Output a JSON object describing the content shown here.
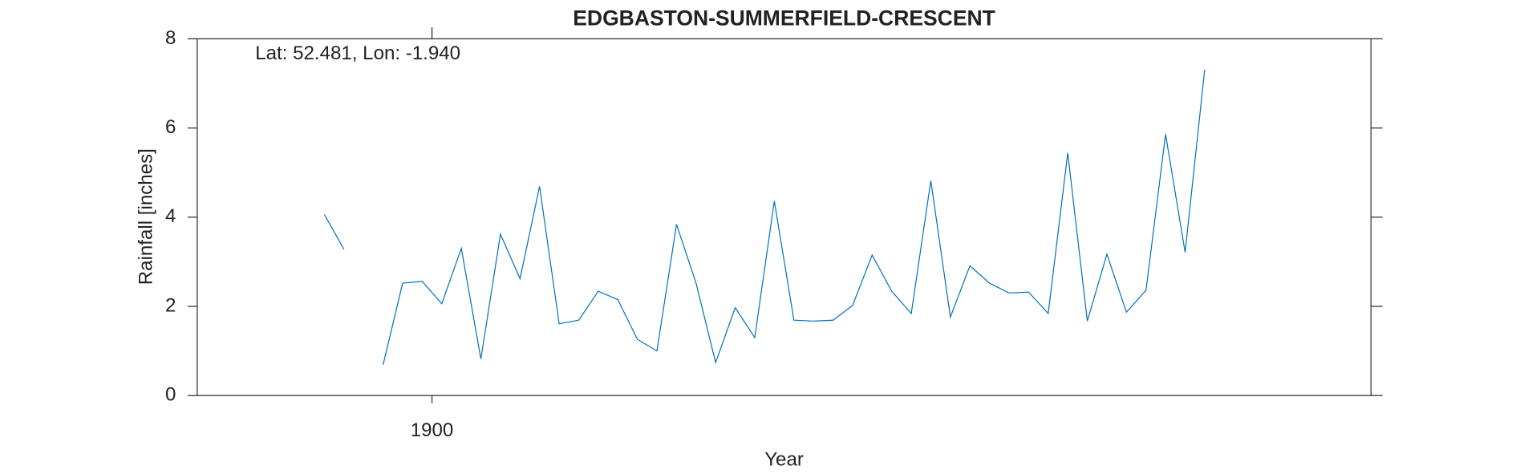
{
  "chart_data": {
    "type": "line",
    "title": "EDGBASTON-SUMMERFIELD-CRESCENT",
    "annotation": "Lat: 52.481, Lon: -1.940",
    "xlabel": "Year",
    "ylabel": "Rainfall [inches]",
    "x": [
      1894.5,
      1895.5,
      1896.5,
      1897.5,
      1898.5,
      1899.5,
      1900.5,
      1901.5,
      1902.5,
      1903.5,
      1904.5,
      1905.5,
      1906.5,
      1907.5,
      1908.5,
      1909.5,
      1910.5,
      1911.5,
      1912.5,
      1913.5,
      1914.5,
      1915.5,
      1916.5,
      1917.5,
      1918.5,
      1919.5,
      1920.5,
      1921.5,
      1922.5,
      1923.5,
      1924.5,
      1925.5,
      1926.5,
      1927.5,
      1928.5,
      1929.5,
      1930.5,
      1931.5,
      1932.5,
      1933.5,
      1934.5,
      1935.5,
      1936.5,
      1937.5,
      1938.5,
      1939.5
    ],
    "values": [
      4.06,
      3.28,
      null,
      0.69,
      2.52,
      2.56,
      2.06,
      3.3,
      0.82,
      3.62,
      2.62,
      4.69,
      1.61,
      1.69,
      2.34,
      2.15,
      1.26,
      1.0,
      3.84,
      2.52,
      0.74,
      1.97,
      1.3,
      4.36,
      1.69,
      1.67,
      1.69,
      2.02,
      3.15,
      2.34,
      1.84,
      4.82,
      1.76,
      2.91,
      2.52,
      2.3,
      2.32,
      1.84,
      5.44,
      1.67,
      3.17,
      1.87,
      2.36,
      5.86,
      3.21,
      7.31
    ],
    "color": "#0072bd",
    "xlim": [
      1888,
      1948
    ],
    "xticks": [
      1900
    ],
    "ylim": [
      0,
      8
    ],
    "yticks": [
      0,
      2,
      4,
      6,
      8
    ]
  }
}
